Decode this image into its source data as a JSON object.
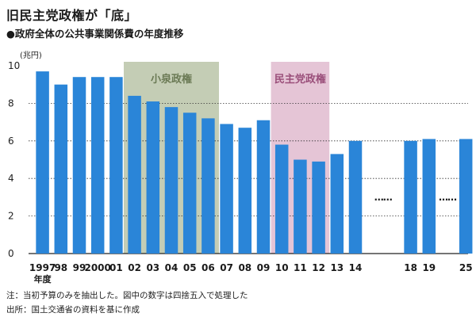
{
  "title": "旧民主党政権が「底」",
  "subtitle": "●政府全体の公共事業関係費の年度推移",
  "notes": {
    "line1": "注：当初予算のみを抽出した。図中の数字は四捨五入で処理した",
    "line2": "出所：国土交通省の資料を基に作成"
  },
  "colors": {
    "bar": "#2a85d8",
    "grid": "#333333",
    "koizumi_band": "#c4cdb5",
    "dpj_band": "#e5c5d6",
    "koizumi_text": "#6b7a55",
    "dpj_text": "#9a4f7a"
  },
  "chart_data": {
    "type": "bar",
    "title": "旧民主党政権が「底」",
    "subtitle": "●政府全体の公共事業関係費の年度推移",
    "ylabel": "(兆円)",
    "xlabel": "年度",
    "ylim": [
      0,
      10
    ],
    "yticks": [
      0,
      2,
      4,
      6,
      8,
      10
    ],
    "grid": true,
    "categories": [
      "1997",
      "98",
      "99",
      "2000",
      "01",
      "02",
      "03",
      "04",
      "05",
      "06",
      "07",
      "08",
      "09",
      "10",
      "11",
      "12",
      "13",
      "14",
      "",
      "",
      "18",
      "19",
      "",
      "25"
    ],
    "values": [
      9.7,
      9.0,
      9.4,
      9.4,
      9.4,
      8.4,
      8.1,
      7.8,
      7.5,
      7.2,
      6.9,
      6.7,
      7.1,
      5.8,
      5.0,
      4.9,
      5.3,
      6.0,
      null,
      null,
      6.0,
      6.1,
      null,
      6.1
    ],
    "xtick_labels": [
      "1997",
      "98",
      "99",
      "2000",
      "01",
      "02",
      "03",
      "04",
      "05",
      "06",
      "07",
      "08",
      "09",
      "10",
      "11",
      "12",
      "13",
      "14",
      "18",
      "19",
      "25"
    ],
    "gaps": [
      {
        "after": "14",
        "before": "18",
        "marker": "……"
      },
      {
        "after": "19",
        "before": "25",
        "marker": "……"
      }
    ],
    "periods": [
      {
        "label": "小泉政権",
        "from": "02",
        "to": "06"
      },
      {
        "label": "民主党政権",
        "from": "10",
        "to": "12"
      }
    ]
  }
}
